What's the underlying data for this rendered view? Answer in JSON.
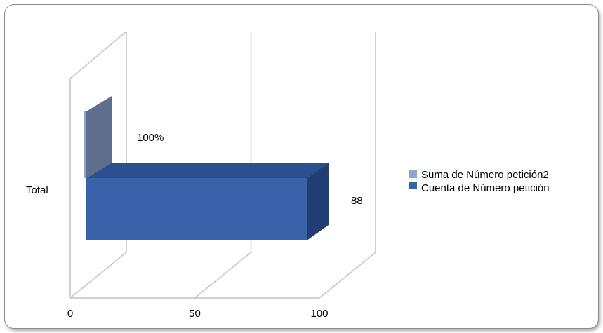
{
  "chart_data": {
    "type": "bar",
    "orientation": "horizontal",
    "style": "3d-clustered",
    "categories": [
      "Total"
    ],
    "series": [
      {
        "name": "Suma de Número petición2",
        "values": [
          1.0
        ],
        "data_labels": [
          "100%"
        ],
        "color": "#8ea5cf"
      },
      {
        "name": "Cuenta de Número petición",
        "values": [
          88
        ],
        "data_labels": [
          "88"
        ],
        "color": "#3a62ab"
      }
    ],
    "xlim": [
      0,
      100
    ],
    "x_ticks": [
      "0",
      "50",
      "100"
    ],
    "grid": true,
    "legend_position": "right"
  }
}
